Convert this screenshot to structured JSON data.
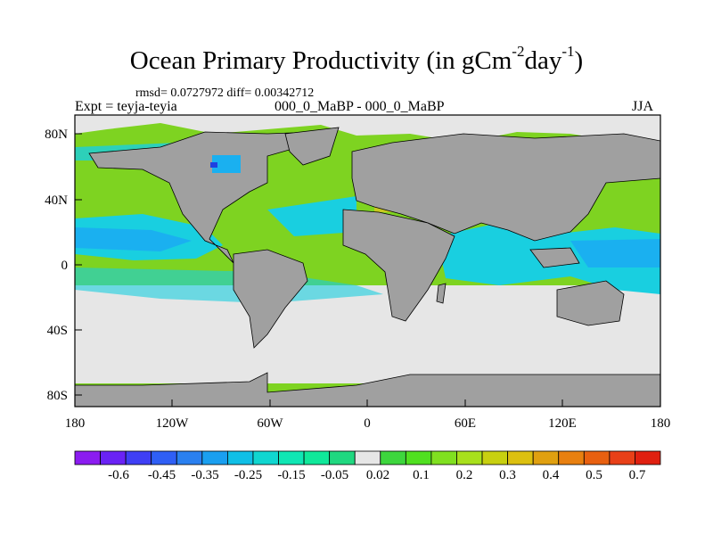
{
  "title": {
    "main": "Ocean Primary Productivity (in gCm",
    "exp1": "-2",
    "mid": "day",
    "exp2": "-1",
    "end": ")"
  },
  "stats": "rmsd= 0.0727972 diff= 0.00342712",
  "experiment": "Expt = teyja-teyia",
  "runs": "000_0_MaBP - 000_0_MaBP",
  "season": "JJA",
  "axes": {
    "x_ticks": [
      "180",
      "120W",
      "60W",
      "0",
      "60E",
      "120E",
      "180"
    ],
    "y_ticks": [
      "80N",
      "40N",
      "0",
      "40S",
      "80S"
    ]
  },
  "colorbar": {
    "labels": [
      "-0.6",
      "-0.45",
      "-0.35",
      "-0.25",
      "-0.15",
      "-0.05",
      "0.02",
      "0.1",
      "0.2",
      "0.3",
      "0.4",
      "0.5",
      "0.7"
    ],
    "colors": [
      "#8b1cf0",
      "#6a22f5",
      "#3f3ff5",
      "#2f5ff5",
      "#2a80f0",
      "#1a9ff0",
      "#10bfe6",
      "#10d6d0",
      "#10e6b4",
      "#10e89a",
      "#20d880",
      "#e6e6e6",
      "#3dd63d",
      "#50e020",
      "#80e020",
      "#a8e01c",
      "#c8d010",
      "#dcc010",
      "#e0a010",
      "#e88010",
      "#e86010",
      "#e84018",
      "#e02010"
    ]
  },
  "colors": {
    "land": "#a0a0a0",
    "neutral": "#e6e6e6",
    "positive_low": "#7ed321",
    "negative_low": "#19cfe0",
    "negative_mid": "#1ab0f0",
    "positive_mid": "#c8c820",
    "negative_high": "#2040e0"
  }
}
